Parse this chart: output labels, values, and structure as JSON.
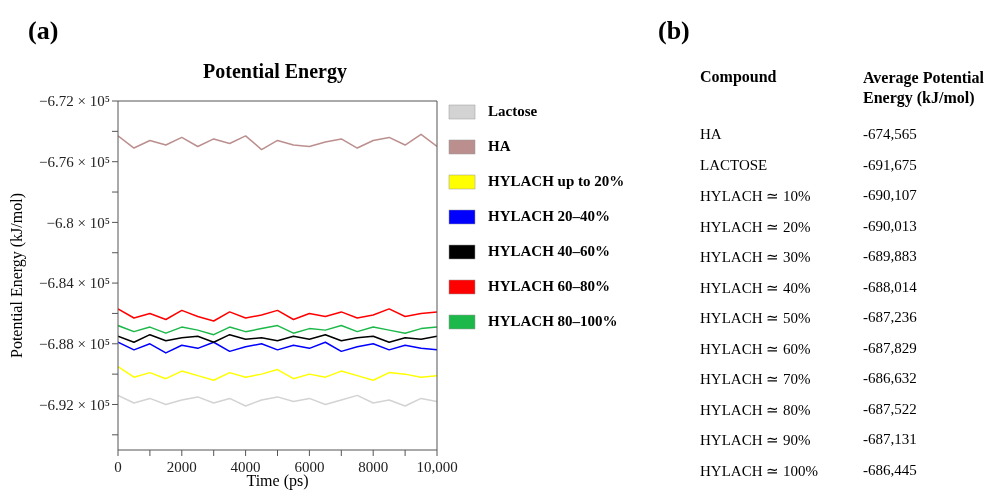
{
  "chart_data": [
    {
      "type": "line",
      "title": "Potential Energy",
      "annotations": [
        "(a)"
      ],
      "xlabel": "Time (ps)",
      "ylabel": "Potential Energy (kJ/mol)",
      "x": [
        0,
        500,
        1000,
        1500,
        2000,
        2500,
        3000,
        3500,
        4000,
        4500,
        5000,
        5500,
        6000,
        6500,
        7000,
        7500,
        8000,
        8500,
        9000,
        9500,
        10000
      ],
      "xlim": [
        0,
        10000
      ],
      "xticks": [
        0,
        {
          "value": 1000,
          "label": null
        },
        2000,
        {
          "value": 3000,
          "label": null
        },
        4000,
        {
          "value": 5000,
          "label": null
        },
        6000,
        {
          "value": 7000,
          "label": null
        },
        8000,
        {
          "value": 9000,
          "label": null
        },
        {
          "value": 10000,
          "label": "10,000"
        }
      ],
      "ylim": [
        -695000,
        -672000
      ],
      "yticks": [
        {
          "value": -694000,
          "label": null
        },
        {
          "value": -692000,
          "label": "−6.92 × 10⁵"
        },
        {
          "value": -690000,
          "label": null
        },
        {
          "value": -688000,
          "label": "−6.88 × 10⁵"
        },
        {
          "value": -686000,
          "label": null
        },
        {
          "value": -684000,
          "label": "−6.84 × 10⁵"
        },
        {
          "value": -682000,
          "label": null
        },
        {
          "value": -680000,
          "label": "−6.8 × 10⁵"
        },
        {
          "value": -678000,
          "label": null
        },
        {
          "value": -676000,
          "label": "−6.76 × 10⁵"
        },
        {
          "value": -674000,
          "label": null
        },
        {
          "value": -672000,
          "label": "−6.72 × 10⁵"
        }
      ],
      "grid": false,
      "legend": "right",
      "marker": "none",
      "line_style": "solid",
      "series": [
        {
          "name": "Lactose",
          "color": "#d3d3d3",
          "values": [
            -691400,
            -691900,
            -691600,
            -692000,
            -691700,
            -691500,
            -691900,
            -691600,
            -692100,
            -691700,
            -691500,
            -691800,
            -691600,
            -692000,
            -691700,
            -691400,
            -691900,
            -691700,
            -692100,
            -691600,
            -691800
          ]
        },
        {
          "name": "HA",
          "color": "#bc8f8f",
          "values": [
            -674300,
            -675100,
            -674600,
            -674900,
            -674400,
            -675000,
            -674500,
            -674800,
            -674300,
            -675200,
            -674600,
            -674900,
            -675000,
            -674700,
            -674500,
            -675100,
            -674600,
            -674400,
            -674900,
            -674200,
            -675000
          ]
        },
        {
          "name": "HYLACH up to 20%",
          "color": "#ffff00",
          "values": [
            -689500,
            -690200,
            -689900,
            -690300,
            -689800,
            -690100,
            -690400,
            -689900,
            -690200,
            -690000,
            -689700,
            -690300,
            -690000,
            -690200,
            -689800,
            -690100,
            -690400,
            -689900,
            -690000,
            -690200,
            -690100
          ]
        },
        {
          "name": "HYLACH 20–40%",
          "color": "#0000ff",
          "values": [
            -687900,
            -688400,
            -688000,
            -688600,
            -688100,
            -688300,
            -687900,
            -688500,
            -688200,
            -688000,
            -688400,
            -688100,
            -688300,
            -687900,
            -688500,
            -688200,
            -688000,
            -688400,
            -688100,
            -688300,
            -688400
          ]
        },
        {
          "name": "HYLACH 40–60%",
          "color": "#000000",
          "values": [
            -687500,
            -687900,
            -687400,
            -687800,
            -687600,
            -687500,
            -687900,
            -687400,
            -687700,
            -687600,
            -687800,
            -687500,
            -687700,
            -687400,
            -687800,
            -687600,
            -687500,
            -687900,
            -687600,
            -687700,
            -687500
          ]
        },
        {
          "name": "HYLACH 60–80%",
          "color": "#ff0000",
          "values": [
            -685700,
            -686300,
            -686000,
            -686400,
            -685800,
            -686200,
            -686500,
            -685900,
            -686300,
            -686100,
            -685800,
            -686400,
            -686000,
            -686200,
            -685900,
            -686300,
            -686100,
            -685700,
            -686200,
            -686000,
            -685900
          ]
        },
        {
          "name": "HYLACH 80–100%",
          "color": "#1db84a",
          "values": [
            -686800,
            -687200,
            -686900,
            -687300,
            -686900,
            -687100,
            -687400,
            -686900,
            -687200,
            -687000,
            -686800,
            -687300,
            -687000,
            -687100,
            -686800,
            -687200,
            -686900,
            -687100,
            -687300,
            -687000,
            -686900
          ]
        }
      ]
    },
    {
      "type": "other",
      "annotations": [
        "(b)",
        "Compound",
        "Average Potential Energy (kJ/mol)"
      ],
      "categories": [
        "HA",
        "LACTOSE",
        "HYLACH ≃ 10%",
        "HYLACH ≃ 20%",
        "HYLACH ≃ 30%",
        "HYLACH ≃ 40%",
        "HYLACH ≃ 50%",
        "HYLACH ≃ 60%",
        "HYLACH ≃ 70%",
        "HYLACH ≃ 80%",
        "HYLACH ≃ 90%",
        "HYLACH ≃ 100%"
      ],
      "value_labels": [
        "-674,565",
        "-691,675",
        "-690,107",
        "-690,013",
        "-689,883",
        "-688,014",
        "-687,236",
        "-687,829",
        "-686,632",
        "-687,522",
        "-687,131",
        "-686,445"
      ]
    }
  ]
}
